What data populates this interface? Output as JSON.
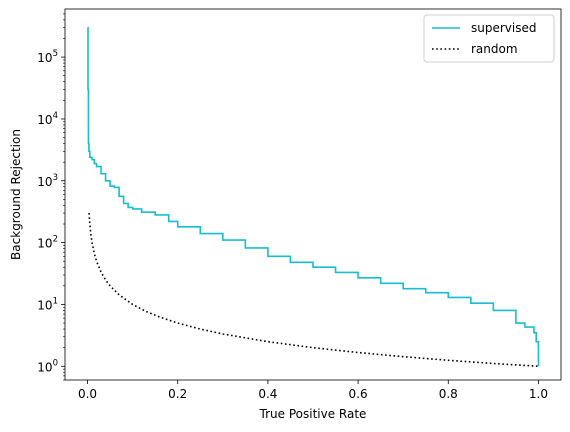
{
  "chart_data": {
    "type": "line",
    "title": "",
    "xlabel": "True Positive Rate",
    "ylabel": "Background Rejection",
    "xlim": [
      -0.05,
      1.05
    ],
    "ylim": [
      0.6,
      600000
    ],
    "yscale": "log",
    "grid": false,
    "legend_position": "top-right",
    "xticks": [
      0.0,
      0.2,
      0.4,
      0.6,
      0.8,
      1.0
    ],
    "xtick_labels": [
      "0.0",
      "0.2",
      "0.4",
      "0.6",
      "0.8",
      "1.0"
    ],
    "yticks": [
      1,
      10,
      100,
      1000,
      10000,
      100000
    ],
    "ytick_labels": [
      {
        "base": "10",
        "exp": "0"
      },
      {
        "base": "10",
        "exp": "1"
      },
      {
        "base": "10",
        "exp": "2"
      },
      {
        "base": "10",
        "exp": "3"
      },
      {
        "base": "10",
        "exp": "4"
      },
      {
        "base": "10",
        "exp": "5"
      }
    ],
    "series": [
      {
        "name": "supervised",
        "color": "#17becf",
        "style": "solid",
        "x": [
          0.0,
          0.001,
          0.002,
          0.003,
          0.005,
          0.01,
          0.015,
          0.02,
          0.03,
          0.04,
          0.05,
          0.06,
          0.07,
          0.08,
          0.09,
          0.1,
          0.12,
          0.15,
          0.18,
          0.2,
          0.25,
          0.3,
          0.35,
          0.4,
          0.45,
          0.5,
          0.55,
          0.6,
          0.65,
          0.7,
          0.75,
          0.8,
          0.85,
          0.9,
          0.95,
          0.97,
          0.99,
          0.995,
          1.0
        ],
        "y": [
          300000,
          30000,
          4000,
          3000,
          2400,
          2200,
          1900,
          1700,
          1300,
          1000,
          820,
          780,
          560,
          430,
          370,
          350,
          310,
          280,
          220,
          180,
          140,
          110,
          82,
          60,
          48,
          40,
          33,
          27,
          22,
          18,
          15.5,
          13,
          10.5,
          8,
          5,
          4.3,
          3.5,
          2.5,
          1.0
        ]
      },
      {
        "name": "random",
        "color": "#000000",
        "style": "dotted",
        "x": [
          0.00333,
          0.005,
          0.0075,
          0.01,
          0.015,
          0.02,
          0.03,
          0.04,
          0.05,
          0.07,
          0.1,
          0.13,
          0.16,
          0.2,
          0.25,
          0.3,
          0.4,
          0.5,
          0.6,
          0.7,
          0.8,
          0.9,
          1.0
        ],
        "y": [
          300,
          200,
          133,
          100,
          66.7,
          50,
          33.3,
          25,
          20,
          14.3,
          10,
          7.69,
          6.25,
          5,
          4,
          3.33,
          2.5,
          2,
          1.67,
          1.43,
          1.25,
          1.11,
          1
        ]
      }
    ]
  }
}
